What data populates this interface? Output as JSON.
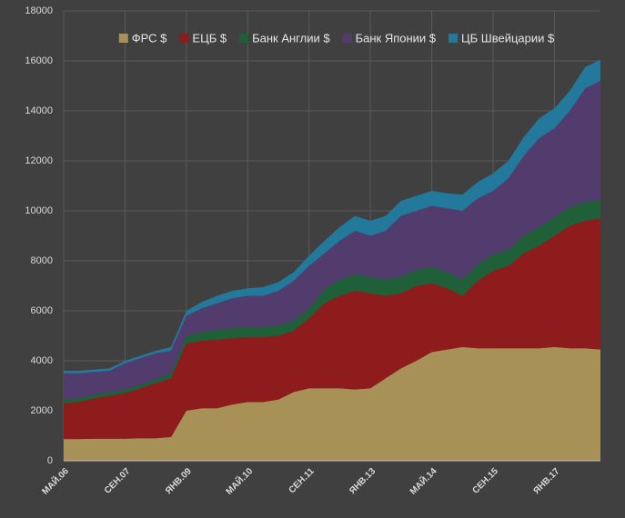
{
  "chart_data": {
    "type": "stacked-area",
    "categories": [
      "МАЙ.06",
      null,
      null,
      null,
      "СЕН.07",
      null,
      null,
      null,
      "ЯНВ.09",
      null,
      null,
      null,
      "МАЙ.10",
      null,
      null,
      null,
      "СЕН.11",
      null,
      null,
      null,
      "ЯНВ.13",
      null,
      null,
      null,
      "МАЙ.14",
      null,
      null,
      null,
      "СЕН.15",
      null,
      null,
      null,
      "ЯНВ.17",
      null,
      null,
      null
    ],
    "series": [
      {
        "name": "ФРС  $",
        "color": "#a89157",
        "values": [
          870,
          870,
          880,
          880,
          880,
          900,
          900,
          950,
          2000,
          2100,
          2100,
          2250,
          2350,
          2350,
          2450,
          2750,
          2900,
          2900,
          2900,
          2850,
          2900,
          3300,
          3700,
          4000,
          4350,
          4450,
          4550,
          4500,
          4500,
          4500,
          4500,
          4500,
          4550,
          4500,
          4500,
          4450
        ]
      },
      {
        "name": "ЕЦБ $",
        "color": "#8e1c1c",
        "values": [
          1430,
          1480,
          1620,
          1720,
          1820,
          2000,
          2200,
          2350,
          2700,
          2700,
          2750,
          2650,
          2600,
          2600,
          2550,
          2450,
          2800,
          3400,
          3700,
          3950,
          3800,
          3300,
          3000,
          3000,
          2750,
          2450,
          2050,
          2700,
          3100,
          3300,
          3800,
          4100,
          4450,
          4900,
          5100,
          5250
        ]
      },
      {
        "name": "Банк Англии $",
        "color": "#1f6038",
        "values": [
          150,
          150,
          150,
          150,
          150,
          150,
          150,
          200,
          300,
          350,
          400,
          400,
          400,
          400,
          400,
          400,
          400,
          550,
          650,
          650,
          650,
          650,
          650,
          650,
          650,
          650,
          650,
          650,
          650,
          650,
          700,
          750,
          750,
          750,
          750,
          750
        ]
      },
      {
        "name": "Банк Японии $",
        "color": "#523c6e",
        "values": [
          1050,
          1000,
          900,
          850,
          1050,
          1050,
          1050,
          900,
          800,
          950,
          1050,
          1200,
          1250,
          1250,
          1400,
          1600,
          1700,
          1450,
          1550,
          1750,
          1650,
          1950,
          2450,
          2350,
          2450,
          2550,
          2750,
          2650,
          2550,
          2850,
          3200,
          3550,
          3550,
          3850,
          4550,
          4750
        ]
      },
      {
        "name": "ЦБ Швейцарии $",
        "color": "#23799c",
        "values": [
          100,
          100,
          100,
          100,
          100,
          100,
          100,
          150,
          200,
          250,
          300,
          300,
          300,
          350,
          350,
          350,
          400,
          500,
          550,
          600,
          600,
          600,
          600,
          600,
          600,
          600,
          650,
          650,
          700,
          700,
          750,
          800,
          800,
          800,
          850,
          850
        ]
      }
    ],
    "ylim": [
      0,
      18000
    ],
    "yticks": [
      0,
      2000,
      4000,
      6000,
      8000,
      10000,
      12000,
      14000,
      16000,
      18000
    ],
    "grid": true
  }
}
